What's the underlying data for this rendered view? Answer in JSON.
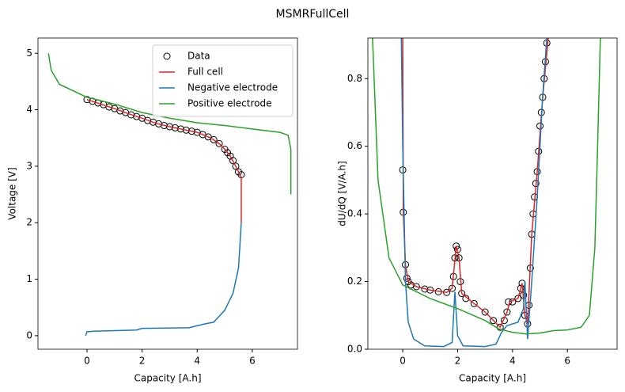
{
  "title": "MSMRFullCell",
  "chart_data": [
    {
      "type": "line",
      "xlabel": "Capacity [A.h]",
      "ylabel": "Voltage [V]",
      "xlim": [
        -1.78,
        7.64
      ],
      "ylim": [
        -0.24,
        5.27
      ],
      "xticks": [
        0,
        2,
        4,
        6
      ],
      "yticks": [
        0,
        1,
        2,
        3,
        4,
        5
      ],
      "legend": "upper right",
      "series": [
        {
          "name": "Data",
          "color": "#000000",
          "marker": "circle",
          "x": [
            0,
            0.2,
            0.4,
            0.6,
            0.8,
            1,
            1.2,
            1.4,
            1.6,
            1.8,
            2,
            2.2,
            2.4,
            2.6,
            2.8,
            3,
            3.2,
            3.4,
            3.6,
            3.8,
            4,
            4.2,
            4.4,
            4.6,
            4.8,
            5,
            5.1,
            5.2,
            5.3,
            5.4,
            5.5,
            5.6
          ],
          "values": [
            4.18,
            4.15,
            4.12,
            4.09,
            4.05,
            4.02,
            3.98,
            3.95,
            3.91,
            3.88,
            3.85,
            3.81,
            3.78,
            3.75,
            3.72,
            3.7,
            3.68,
            3.66,
            3.64,
            3.62,
            3.6,
            3.56,
            3.52,
            3.47,
            3.4,
            3.3,
            3.24,
            3.18,
            3.1,
            3.0,
            2.9,
            2.85
          ]
        },
        {
          "name": "Full cell",
          "color": "#d62728",
          "x": [
            0,
            0.5,
            1,
            1.5,
            2,
            2.5,
            3,
            3.5,
            4,
            4.5,
            4.8,
            5,
            5.2,
            5.4,
            5.5,
            5.6,
            5.6
          ],
          "values": [
            4.18,
            4.1,
            4.02,
            3.93,
            3.85,
            3.76,
            3.7,
            3.65,
            3.6,
            3.5,
            3.4,
            3.3,
            3.18,
            3.0,
            2.9,
            2.8,
            2.0
          ]
        },
        {
          "name": "Negative electrode",
          "color": "#1f77b4",
          "x": [
            -0.05,
            0,
            0.3,
            1.8,
            2,
            3.7,
            4.2,
            4.6,
            5,
            5.3,
            5.5,
            5.6
          ],
          "values": [
            0.0,
            0.07,
            0.08,
            0.1,
            0.13,
            0.14,
            0.2,
            0.24,
            0.45,
            0.75,
            1.2,
            2.0
          ]
        },
        {
          "name": "Positive electrode",
          "color": "#2ca02c",
          "x": [
            -1.4,
            -1.3,
            -1,
            0,
            1,
            2,
            3,
            4,
            5,
            6,
            7,
            7.3,
            7.4,
            7.4
          ],
          "values": [
            5.0,
            4.7,
            4.45,
            4.22,
            4.1,
            3.95,
            3.85,
            3.77,
            3.72,
            3.66,
            3.6,
            3.55,
            3.3,
            2.5
          ]
        }
      ]
    },
    {
      "type": "line",
      "xlabel": "Capacity [A.h]",
      "ylabel": "dU/dQ [V/A.h]",
      "xlim": [
        -1.27,
        7.81
      ],
      "ylim": [
        0,
        0.92
      ],
      "xticks": [
        0,
        2,
        4,
        6
      ],
      "yticks": [
        {
          "value": 0,
          "label": "0.0"
        },
        0.2,
        0.4,
        0.6,
        0.8
      ],
      "series": [
        {
          "color": "#000000",
          "marker": "circle",
          "x": [
            0,
            0.02,
            0.1,
            0.15,
            0.2,
            0.3,
            0.5,
            0.8,
            1,
            1.3,
            1.6,
            1.8,
            1.85,
            1.9,
            1.95,
            2.0,
            2.05,
            2.1,
            2.15,
            2.3,
            2.6,
            3.0,
            3.3,
            3.55,
            3.7,
            3.8,
            3.85,
            4.0,
            4.2,
            4.3,
            4.35,
            4.4,
            4.45,
            4.55,
            4.6,
            4.65,
            4.7,
            4.75,
            4.8,
            4.85,
            4.9,
            4.95,
            5.0,
            5.05,
            5.1,
            5.15,
            5.2,
            5.25
          ],
          "values": [
            0.53,
            0.405,
            0.25,
            0.21,
            0.2,
            0.19,
            0.185,
            0.178,
            0.175,
            0.17,
            0.168,
            0.18,
            0.215,
            0.27,
            0.305,
            0.295,
            0.27,
            0.2,
            0.165,
            0.15,
            0.135,
            0.11,
            0.085,
            0.065,
            0.085,
            0.11,
            0.14,
            0.14,
            0.15,
            0.18,
            0.195,
            0.16,
            0.1,
            0.075,
            0.13,
            0.24,
            0.34,
            0.4,
            0.45,
            0.49,
            0.525,
            0.585,
            0.66,
            0.7,
            0.745,
            0.8,
            0.85,
            0.905
          ]
        },
        {
          "color": "#d62728",
          "x": [
            0,
            0.02,
            0.1,
            0.2,
            0.5,
            1,
            1.6,
            1.8,
            1.95,
            2.05,
            2.15,
            2.6,
            3.0,
            3.55,
            3.8,
            3.9,
            4.2,
            4.35,
            4.45,
            4.55,
            4.7,
            4.9,
            5.1,
            5.3
          ],
          "values": [
            0.92,
            0.405,
            0.25,
            0.2,
            0.185,
            0.175,
            0.168,
            0.18,
            0.305,
            0.27,
            0.165,
            0.135,
            0.11,
            0.065,
            0.11,
            0.14,
            0.15,
            0.195,
            0.1,
            0.075,
            0.34,
            0.525,
            0.745,
            0.92
          ]
        },
        {
          "color": "#1f77b4",
          "x": [
            -0.05,
            0,
            0.1,
            0.2,
            0.4,
            0.8,
            1.5,
            1.8,
            1.9,
            2.0,
            2.2,
            3.0,
            3.4,
            3.6,
            3.8,
            4.2,
            4.4,
            4.45,
            4.55,
            4.7,
            4.9,
            5.1,
            5.25
          ],
          "values": [
            0.92,
            0.6,
            0.2,
            0.08,
            0.03,
            0.01,
            0.008,
            0.02,
            0.17,
            0.04,
            0.01,
            0.008,
            0.015,
            0.05,
            0.07,
            0.08,
            0.12,
            0.2,
            0.03,
            0.2,
            0.45,
            0.75,
            0.92
          ]
        },
        {
          "color": "#2ca02c",
          "x": [
            -1.1,
            -0.9,
            -0.5,
            0,
            1,
            2,
            3,
            3.5,
            4,
            4.5,
            5,
            5.5,
            6,
            6.5,
            6.8,
            7.0,
            7.1,
            7.2
          ],
          "values": [
            0.92,
            0.5,
            0.27,
            0.19,
            0.15,
            0.12,
            0.085,
            0.06,
            0.05,
            0.045,
            0.048,
            0.055,
            0.057,
            0.065,
            0.1,
            0.3,
            0.6,
            0.92
          ]
        }
      ]
    }
  ]
}
